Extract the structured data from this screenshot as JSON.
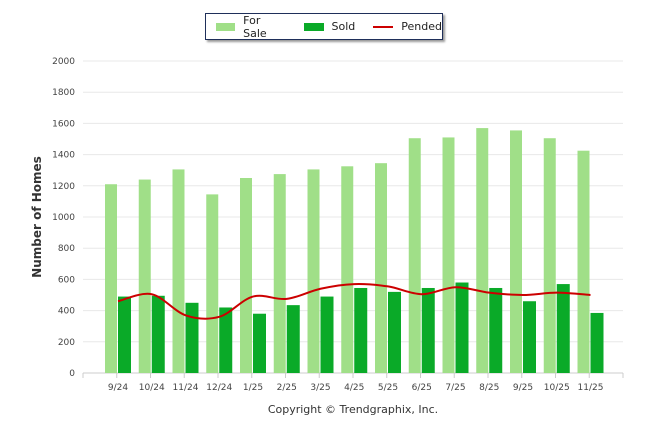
{
  "chart_data": {
    "type": "bar",
    "title": "",
    "xlabel": "",
    "ylabel": "Number of Homes",
    "ylim": [
      0,
      2000
    ],
    "yticks": [
      0,
      200,
      400,
      600,
      800,
      1000,
      1200,
      1400,
      1600,
      1800,
      2000
    ],
    "grid": true,
    "legend_position": "top-center",
    "categories": [
      "9/24",
      "10/24",
      "11/24",
      "12/24",
      "1/25",
      "2/25",
      "3/25",
      "4/25",
      "5/25",
      "6/25",
      "7/25",
      "8/25",
      "9/25",
      "10/25",
      "11/25"
    ],
    "series": [
      {
        "name": "For Sale",
        "kind": "bar",
        "color": "#a0df88",
        "values": [
          1210,
          1240,
          1305,
          1145,
          1250,
          1275,
          1305,
          1325,
          1345,
          1505,
          1510,
          1570,
          1555,
          1505,
          1425
        ]
      },
      {
        "name": "Sold",
        "kind": "bar",
        "color": "#0aaa28",
        "values": [
          490,
          495,
          450,
          420,
          380,
          435,
          490,
          545,
          520,
          545,
          580,
          545,
          460,
          570,
          385
        ]
      },
      {
        "name": "Pended",
        "kind": "line",
        "color": "#cc0000",
        "values": [
          460,
          505,
          370,
          360,
          490,
          475,
          540,
          570,
          555,
          505,
          550,
          515,
          500,
          515,
          500
        ]
      }
    ],
    "footer": "Copyright © Trendgraphix, Inc."
  }
}
